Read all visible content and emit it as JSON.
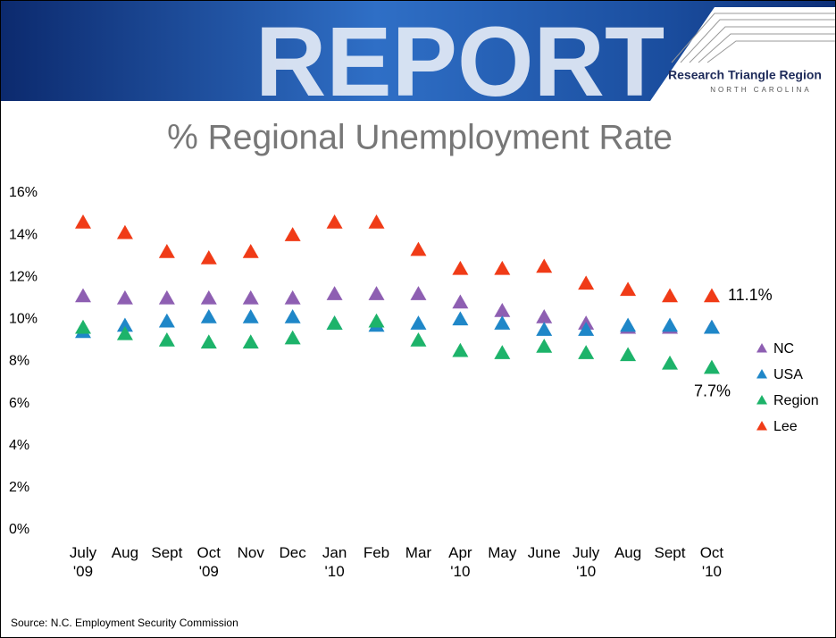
{
  "header": {
    "banner": "REPORT",
    "logo": "Research Triangle Region",
    "logo_sub": "NORTH CAROLINA"
  },
  "chart_data": {
    "type": "scatter",
    "title": "% Regional Unemployment Rate",
    "categories": [
      "July\n'09",
      "Aug",
      "Sept",
      "Oct\n'09",
      "Nov",
      "Dec",
      "Jan\n'10",
      "Feb",
      "Mar",
      "Apr\n'10",
      "May",
      "June",
      "July\n'10",
      "Aug",
      "Sept",
      "Oct\n'10"
    ],
    "series": [
      {
        "name": "NC",
        "color": "#8e5fb2",
        "values": [
          11.1,
          11.0,
          11.0,
          11.0,
          11.0,
          11.0,
          11.2,
          11.2,
          11.2,
          10.8,
          10.4,
          10.1,
          9.8,
          9.6,
          9.6,
          9.6
        ]
      },
      {
        "name": "USA",
        "color": "#1f87c8",
        "values": [
          9.4,
          9.7,
          9.9,
          10.1,
          10.1,
          10.1,
          9.8,
          9.7,
          9.8,
          10.0,
          9.8,
          9.5,
          9.5,
          9.7,
          9.7,
          9.6
        ]
      },
      {
        "name": "Region",
        "color": "#1db36a",
        "values": [
          9.6,
          9.3,
          9.0,
          8.9,
          8.9,
          9.1,
          9.8,
          9.9,
          9.0,
          8.5,
          8.4,
          8.7,
          8.4,
          8.3,
          7.9,
          7.7
        ],
        "value_labels": [
          null,
          null,
          null,
          null,
          null,
          null,
          null,
          null,
          null,
          null,
          null,
          null,
          null,
          null,
          null,
          "7.7%"
        ]
      },
      {
        "name": "Lee",
        "color": "#f03b17",
        "values": [
          14.6,
          14.1,
          13.2,
          12.9,
          13.2,
          14.0,
          14.6,
          14.6,
          13.3,
          12.4,
          12.4,
          12.5,
          11.7,
          11.4,
          11.1,
          11.1
        ],
        "value_labels": [
          null,
          null,
          null,
          null,
          null,
          null,
          null,
          null,
          null,
          null,
          null,
          null,
          null,
          null,
          null,
          "11.1%"
        ]
      }
    ],
    "ylim": [
      0,
      16
    ],
    "yticks": [
      {
        "value": 0,
        "label": "0%"
      },
      {
        "value": 2,
        "label": "2%"
      },
      {
        "value": 4,
        "label": "4%"
      },
      {
        "value": 6,
        "label": "6%"
      },
      {
        "value": 8,
        "label": "8%"
      },
      {
        "value": 10,
        "label": "10%"
      },
      {
        "value": 12,
        "label": "12%"
      },
      {
        "value": 14,
        "label": "14%"
      },
      {
        "value": 16,
        "label": "16%"
      }
    ],
    "grid": false,
    "legend": "right"
  },
  "footer": {
    "source": "Source: N.C. Employment Security Commission"
  }
}
